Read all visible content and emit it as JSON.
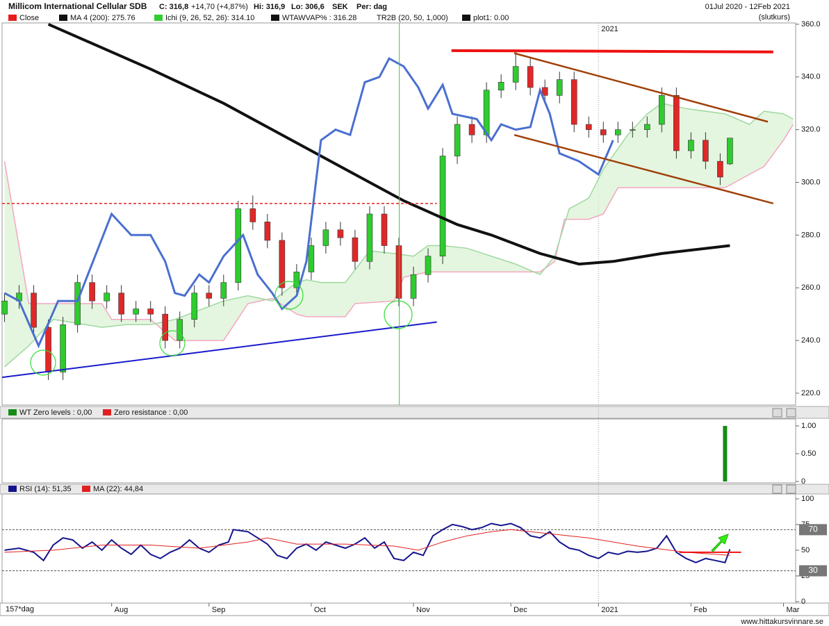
{
  "chart_data": [
    {
      "type": "candlestick",
      "title": "Millicom International Cellular SDB",
      "quote": [
        "C: 316,8",
        "+14,70 (+4,87%)",
        "Hi: 316,9",
        "Lo: 306,6",
        "SEK",
        "Per: dag"
      ],
      "period": "01Jul 2020 - 12Feb 2021",
      "price_type": "(slutkurs)",
      "interval": "157*dag",
      "legend": [
        {
          "name": "Close",
          "color": "#e81c1c"
        },
        {
          "name": "MA 4 (200): 275.76",
          "color": "#111111"
        },
        {
          "name": "Ichi (9, 26, 52, 26): 314.10",
          "color": "#33cc33"
        },
        {
          "name": "WTAWVAP% : 316.28",
          "color": "#111111"
        },
        {
          "name": "TR2B (20, 50, 1,000)",
          "color": null
        },
        {
          "name": "plot1: 0.00",
          "color": "#111111"
        }
      ],
      "up_color": "#2ecc2e",
      "down_color": "#e02828",
      "x": [
        0,
        3,
        6,
        9,
        12,
        15,
        18,
        21,
        24,
        27,
        30,
        33,
        36,
        39,
        42,
        45,
        48,
        51,
        54,
        57,
        60,
        63,
        66,
        69,
        72,
        75,
        78,
        81,
        84,
        87,
        90,
        93,
        96,
        99,
        102,
        105,
        108,
        111,
        114,
        117,
        120,
        123,
        126,
        129,
        132,
        135,
        138,
        141,
        144,
        147,
        149
      ],
      "open": [
        250,
        255,
        258,
        245,
        228,
        246,
        262,
        255,
        258,
        250,
        252,
        250,
        240,
        248,
        258,
        256,
        262,
        290,
        285,
        278,
        260,
        266,
        276,
        282,
        279,
        270,
        288,
        276,
        256,
        265,
        272,
        310,
        322,
        318,
        335,
        338,
        344,
        336,
        333,
        339,
        322,
        320,
        318,
        320,
        320,
        322,
        333,
        312,
        316,
        308,
        307
      ],
      "high": [
        258,
        261,
        261,
        248,
        249,
        265,
        265,
        261,
        261,
        255,
        255,
        253,
        251,
        261,
        261,
        265,
        293,
        295,
        288,
        281,
        269,
        279,
        285,
        285,
        282,
        291,
        291,
        279,
        268,
        275,
        313,
        325,
        325,
        338,
        341,
        350,
        347,
        339,
        342,
        342,
        325,
        323,
        323,
        323,
        325,
        336,
        336,
        319,
        319,
        311,
        316.9
      ],
      "low": [
        247,
        252,
        242,
        225,
        225,
        243,
        252,
        252,
        247,
        247,
        247,
        237,
        237,
        245,
        253,
        253,
        259,
        282,
        275,
        257,
        257,
        263,
        273,
        276,
        267,
        267,
        273,
        253,
        253,
        262,
        269,
        307,
        315,
        315,
        332,
        335,
        333,
        330,
        330,
        319,
        317,
        315,
        315,
        317,
        317,
        319,
        309,
        309,
        305,
        299,
        306.6
      ],
      "close": [
        255,
        258,
        245,
        228,
        246,
        262,
        255,
        258,
        250,
        252,
        250,
        240,
        248,
        258,
        256,
        262,
        290,
        285,
        278,
        260,
        266,
        276,
        282,
        279,
        270,
        288,
        276,
        256,
        265,
        272,
        310,
        322,
        318,
        335,
        338,
        344,
        336,
        333,
        339,
        322,
        320,
        318,
        320,
        320,
        322,
        333,
        312,
        316,
        308,
        302,
        316.8
      ],
      "series": [
        {
          "color": "#f4a6c0",
          "x": [
            0,
            5,
            20,
            22,
            30,
            35,
            45,
            50,
            55,
            60,
            62,
            70,
            72,
            80,
            82,
            87,
            110,
            113,
            115,
            120,
            123,
            126,
            148,
            152,
            156,
            160,
            162
          ],
          "values": [
            308,
            254,
            254,
            248,
            248,
            240,
            240,
            254,
            256,
            250,
            249,
            249,
            254,
            255,
            264,
            266,
            266,
            270,
            286,
            286,
            288,
            298,
            298,
            302,
            306,
            316,
            322
          ]
        },
        {
          "color": "#9fd89f",
          "x": [
            0,
            5,
            10,
            20,
            25,
            30,
            35,
            45,
            50,
            55,
            60,
            62,
            65,
            70,
            75,
            80,
            84,
            87,
            90,
            95,
            105,
            110,
            113,
            116,
            120,
            123,
            128,
            132,
            135,
            140,
            148,
            153,
            156,
            160,
            162
          ],
          "values": [
            230,
            238,
            248,
            245,
            246,
            246,
            248,
            255,
            257,
            255,
            262,
            263,
            262,
            262,
            274,
            273,
            272,
            276,
            276,
            275,
            269,
            265,
            272,
            290,
            294,
            305,
            318,
            326,
            330,
            328,
            326,
            322,
            327,
            326,
            324
          ]
        },
        {
          "color": "#111111",
          "width": 4,
          "x": [
            9,
            30,
            45,
            60,
            75,
            82,
            93,
            100,
            110,
            118,
            125,
            135,
            149
          ],
          "values": [
            360,
            343,
            330,
            315,
            300,
            293,
            284,
            280,
            273,
            269,
            270,
            273,
            276
          ]
        },
        {
          "color": "#4a6fd0",
          "width": 3,
          "x": [
            0,
            3,
            7,
            11,
            15,
            22,
            26,
            30,
            33,
            35,
            37,
            40,
            42,
            45,
            49,
            52,
            55,
            57,
            60,
            62,
            65,
            68,
            71,
            74,
            77,
            79,
            82,
            85,
            87,
            90,
            92,
            97,
            100,
            102,
            105,
            108,
            110,
            112,
            114,
            118,
            122,
            125
          ],
          "values": [
            258,
            255,
            238,
            255,
            255,
            288,
            280,
            280,
            270,
            258,
            257,
            265,
            262,
            272,
            280,
            265,
            258,
            252,
            257,
            270,
            316,
            320,
            318,
            338,
            340,
            347,
            344,
            336,
            328,
            337,
            326,
            324,
            316,
            322,
            320,
            321,
            335,
            326,
            311,
            308,
            303,
            316
          ]
        }
      ],
      "lines": [
        {
          "color": "#1a1acc",
          "width": 2,
          "dash": false,
          "x": [
            -0.5,
            88.8
          ],
          "y": [
            226,
            247
          ]
        },
        {
          "color": "#e02020",
          "width": 1.5,
          "dash": true,
          "x": [
            -0.5,
            88.8
          ],
          "y": [
            292,
            292
          ]
        },
        {
          "color": "#ee1111",
          "width": 4,
          "dash": false,
          "x": [
            91.8,
            157.9
          ],
          "y": [
            350,
            349.5
          ]
        },
        {
          "color": "#a0400a",
          "width": 2.5,
          "dash": false,
          "x": [
            104.7,
            156.8
          ],
          "y": [
            349,
            323
          ]
        },
        {
          "color": "#a0400a",
          "width": 2.5,
          "dash": false,
          "x": [
            104.7,
            157.9
          ],
          "y": [
            318,
            292
          ]
        },
        {
          "color": "#33cc33",
          "width": 1,
          "dash": false,
          "x": [
            81.1,
            81.1
          ],
          "y": [
            215.5,
            360.5
          ]
        }
      ],
      "xlim": [
        -0.5,
        162.5
      ],
      "xticks": [
        {
          "value": 22,
          "label": "Aug"
        },
        {
          "value": 42,
          "label": "Sep"
        },
        {
          "value": 63,
          "label": "Oct"
        },
        {
          "value": 84,
          "label": "Nov"
        },
        {
          "value": 104,
          "label": "Dec"
        },
        {
          "value": 122,
          "label": "2021"
        },
        {
          "value": 141,
          "label": "Feb"
        },
        {
          "value": 160,
          "label": "Mar"
        }
      ],
      "ylim": [
        215.5,
        360.5
      ],
      "yticks": [
        {
          "value": 360,
          "label": "360.0"
        },
        {
          "value": 340,
          "label": "340.0"
        },
        {
          "value": 320,
          "label": "320.0"
        },
        {
          "value": 300,
          "label": "300.0"
        },
        {
          "value": 280,
          "label": "280.0"
        },
        {
          "value": 260,
          "label": "260.0"
        },
        {
          "value": 240,
          "label": "240.0"
        },
        {
          "value": 220,
          "label": "220.0"
        }
      ]
    },
    {
      "type": "bar",
      "legend": [
        {
          "name": "WT Zero levels : 0,00",
          "color": "#168c16"
        },
        {
          "name": "Zero resistance : 0,00",
          "color": "#e02020"
        }
      ],
      "x": [
        148
      ],
      "values": [
        1
      ],
      "color": "#168c16",
      "xlim": [
        -0.5,
        162.5
      ],
      "ylim": [
        -0.025,
        1.125
      ],
      "yticks": [
        {
          "value": 1,
          "label": "1.00"
        },
        {
          "value": 0.5,
          "label": "0.50"
        },
        0
      ]
    },
    {
      "type": "line",
      "legend": [
        {
          "name": "RSI (14): 51,35",
          "color": "#14148c"
        },
        {
          "name": "MA (22): 44,84",
          "color": "#e02020"
        }
      ],
      "series": [
        {
          "color": "#14148c",
          "width": 2,
          "x": [
            0,
            3,
            6,
            8,
            10,
            12,
            14,
            16,
            18,
            20,
            22,
            24,
            26,
            28,
            30,
            32,
            34,
            36,
            38,
            40,
            42,
            44,
            46,
            47,
            50,
            52,
            54,
            56,
            58,
            60,
            62,
            64,
            66,
            68,
            70,
            72,
            74,
            76,
            78,
            80,
            82,
            84,
            86,
            88,
            90,
            92,
            94,
            96,
            98,
            100,
            102,
            104,
            106,
            108,
            110,
            112,
            114,
            116,
            118,
            120,
            122,
            124,
            126,
            128,
            130,
            132,
            134,
            136,
            138,
            140,
            142,
            144,
            146,
            148,
            149
          ],
          "values": [
            50,
            52,
            48,
            40,
            55,
            62,
            60,
            52,
            58,
            50,
            60,
            52,
            46,
            55,
            46,
            42,
            48,
            52,
            60,
            52,
            48,
            55,
            58,
            70,
            68,
            62,
            56,
            45,
            42,
            52,
            56,
            50,
            58,
            55,
            52,
            56,
            62,
            52,
            58,
            42,
            40,
            48,
            45,
            64,
            70,
            75,
            73,
            70,
            72,
            76,
            74,
            76,
            72,
            64,
            62,
            68,
            58,
            52,
            50,
            45,
            42,
            48,
            46,
            49,
            48,
            49,
            52,
            64,
            48,
            42,
            38,
            42,
            40,
            38,
            51
          ]
        },
        {
          "color": "#e02020",
          "width": 1,
          "x": [
            0,
            10,
            20,
            30,
            40,
            50,
            54,
            60,
            70,
            80,
            85,
            90,
            95,
            100,
            104,
            110,
            120,
            130,
            140,
            149
          ],
          "values": [
            48,
            50,
            55,
            55,
            52,
            58,
            62,
            56,
            56,
            54,
            50,
            58,
            64,
            68,
            70,
            67,
            62,
            54,
            48,
            45
          ]
        }
      ],
      "levels": [
        70,
        30
      ],
      "lines": [
        {
          "color": "#ee1111",
          "width": 2,
          "dash": false,
          "x": [
            138.6,
            151.3
          ],
          "y": [
            48,
            48
          ]
        }
      ],
      "xlim": [
        -0.5,
        162.5
      ],
      "ylim": [
        -1.4,
        104.7
      ],
      "yticks": [
        100,
        75,
        50,
        25,
        0
      ]
    }
  ],
  "watermark": "www.hittakursvinnare.se"
}
